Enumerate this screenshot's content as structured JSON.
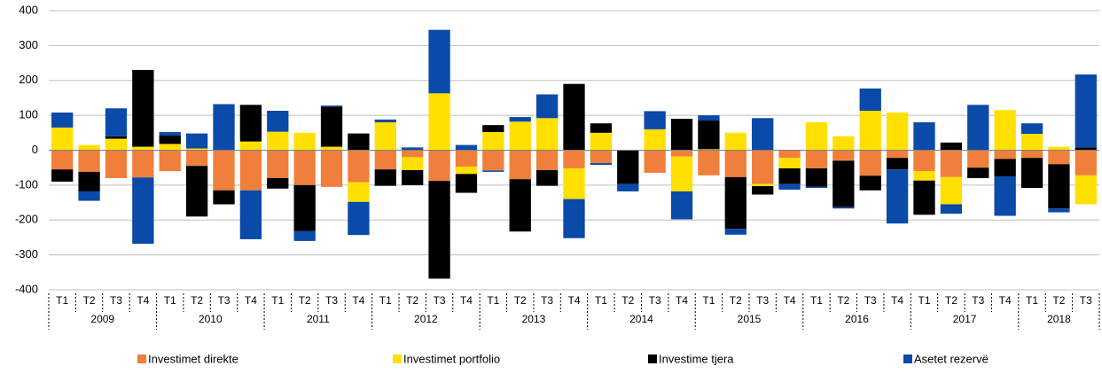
{
  "chart_data": {
    "type": "stacked_bar",
    "categories": [
      "T1",
      "T2",
      "T3",
      "T4",
      "T1",
      "T2",
      "T3",
      "T4",
      "T1",
      "T2",
      "T3",
      "T4",
      "T1",
      "T2",
      "T3",
      "T4",
      "T1",
      "T2",
      "T3",
      "T4",
      "T1",
      "T2",
      "T3",
      "T4",
      "T1",
      "T2",
      "T3",
      "T4",
      "T1",
      "T2",
      "T3",
      "T4",
      "T1",
      "T2",
      "T3",
      "T4",
      "T1",
      "T2",
      "T3"
    ],
    "groups": [
      "2009",
      "2010",
      "2011",
      "2012",
      "2013",
      "2014",
      "2015",
      "2016",
      "2017",
      "2018"
    ],
    "series": [
      {
        "name": "Investimet direkte",
        "color": "#f07f3c",
        "values": [
          -55,
          -62,
          -80,
          -78,
          -60,
          -45,
          -115,
          -115,
          -80,
          -100,
          -105,
          -92,
          -55,
          -20,
          -88,
          -47,
          -58,
          -83,
          -57,
          -52,
          -37,
          0,
          -65,
          -18,
          -72,
          -77,
          -97,
          -22,
          -52,
          -30,
          -73,
          -22,
          -60,
          -77,
          -50,
          -25,
          -22,
          -40,
          -72
        ]
      },
      {
        "name": "Investimet portfolio",
        "color": "#ffe000",
        "values": [
          65,
          15,
          33,
          10,
          18,
          5,
          0,
          25,
          53,
          50,
          10,
          -56,
          80,
          -37,
          163,
          -21,
          52,
          82,
          92,
          -88,
          50,
          0,
          60,
          -100,
          3,
          50,
          -6,
          -30,
          80,
          40,
          113,
          108,
          -27,
          -78,
          0,
          115,
          47,
          10,
          -83
        ]
      },
      {
        "name": "Investime tjera",
        "color": "#000000",
        "values": [
          -35,
          -56,
          7,
          220,
          24,
          -145,
          -40,
          105,
          -30,
          -132,
          115,
          48,
          -47,
          -43,
          -280,
          -54,
          20,
          -150,
          -45,
          190,
          27,
          -97,
          0,
          90,
          82,
          -148,
          -24,
          -45,
          -53,
          -133,
          -42,
          -33,
          -98,
          22,
          -30,
          -50,
          -86,
          -127,
          8
        ]
      },
      {
        "name": "Asetet rezervë",
        "color": "#0a4aa8",
        "values": [
          43,
          -27,
          80,
          -190,
          10,
          43,
          132,
          -140,
          60,
          -28,
          3,
          -95,
          8,
          8,
          182,
          15,
          -4,
          13,
          68,
          -112,
          -5,
          -21,
          52,
          -80,
          15,
          -17,
          92,
          -16,
          -3,
          -4,
          64,
          -155,
          80,
          -27,
          130,
          -113,
          30,
          -11,
          209
        ]
      }
    ],
    "ylim": [
      -400,
      400
    ],
    "yticks": [
      -400,
      -300,
      -200,
      -100,
      0,
      100,
      200,
      300,
      400
    ],
    "grid": true
  }
}
